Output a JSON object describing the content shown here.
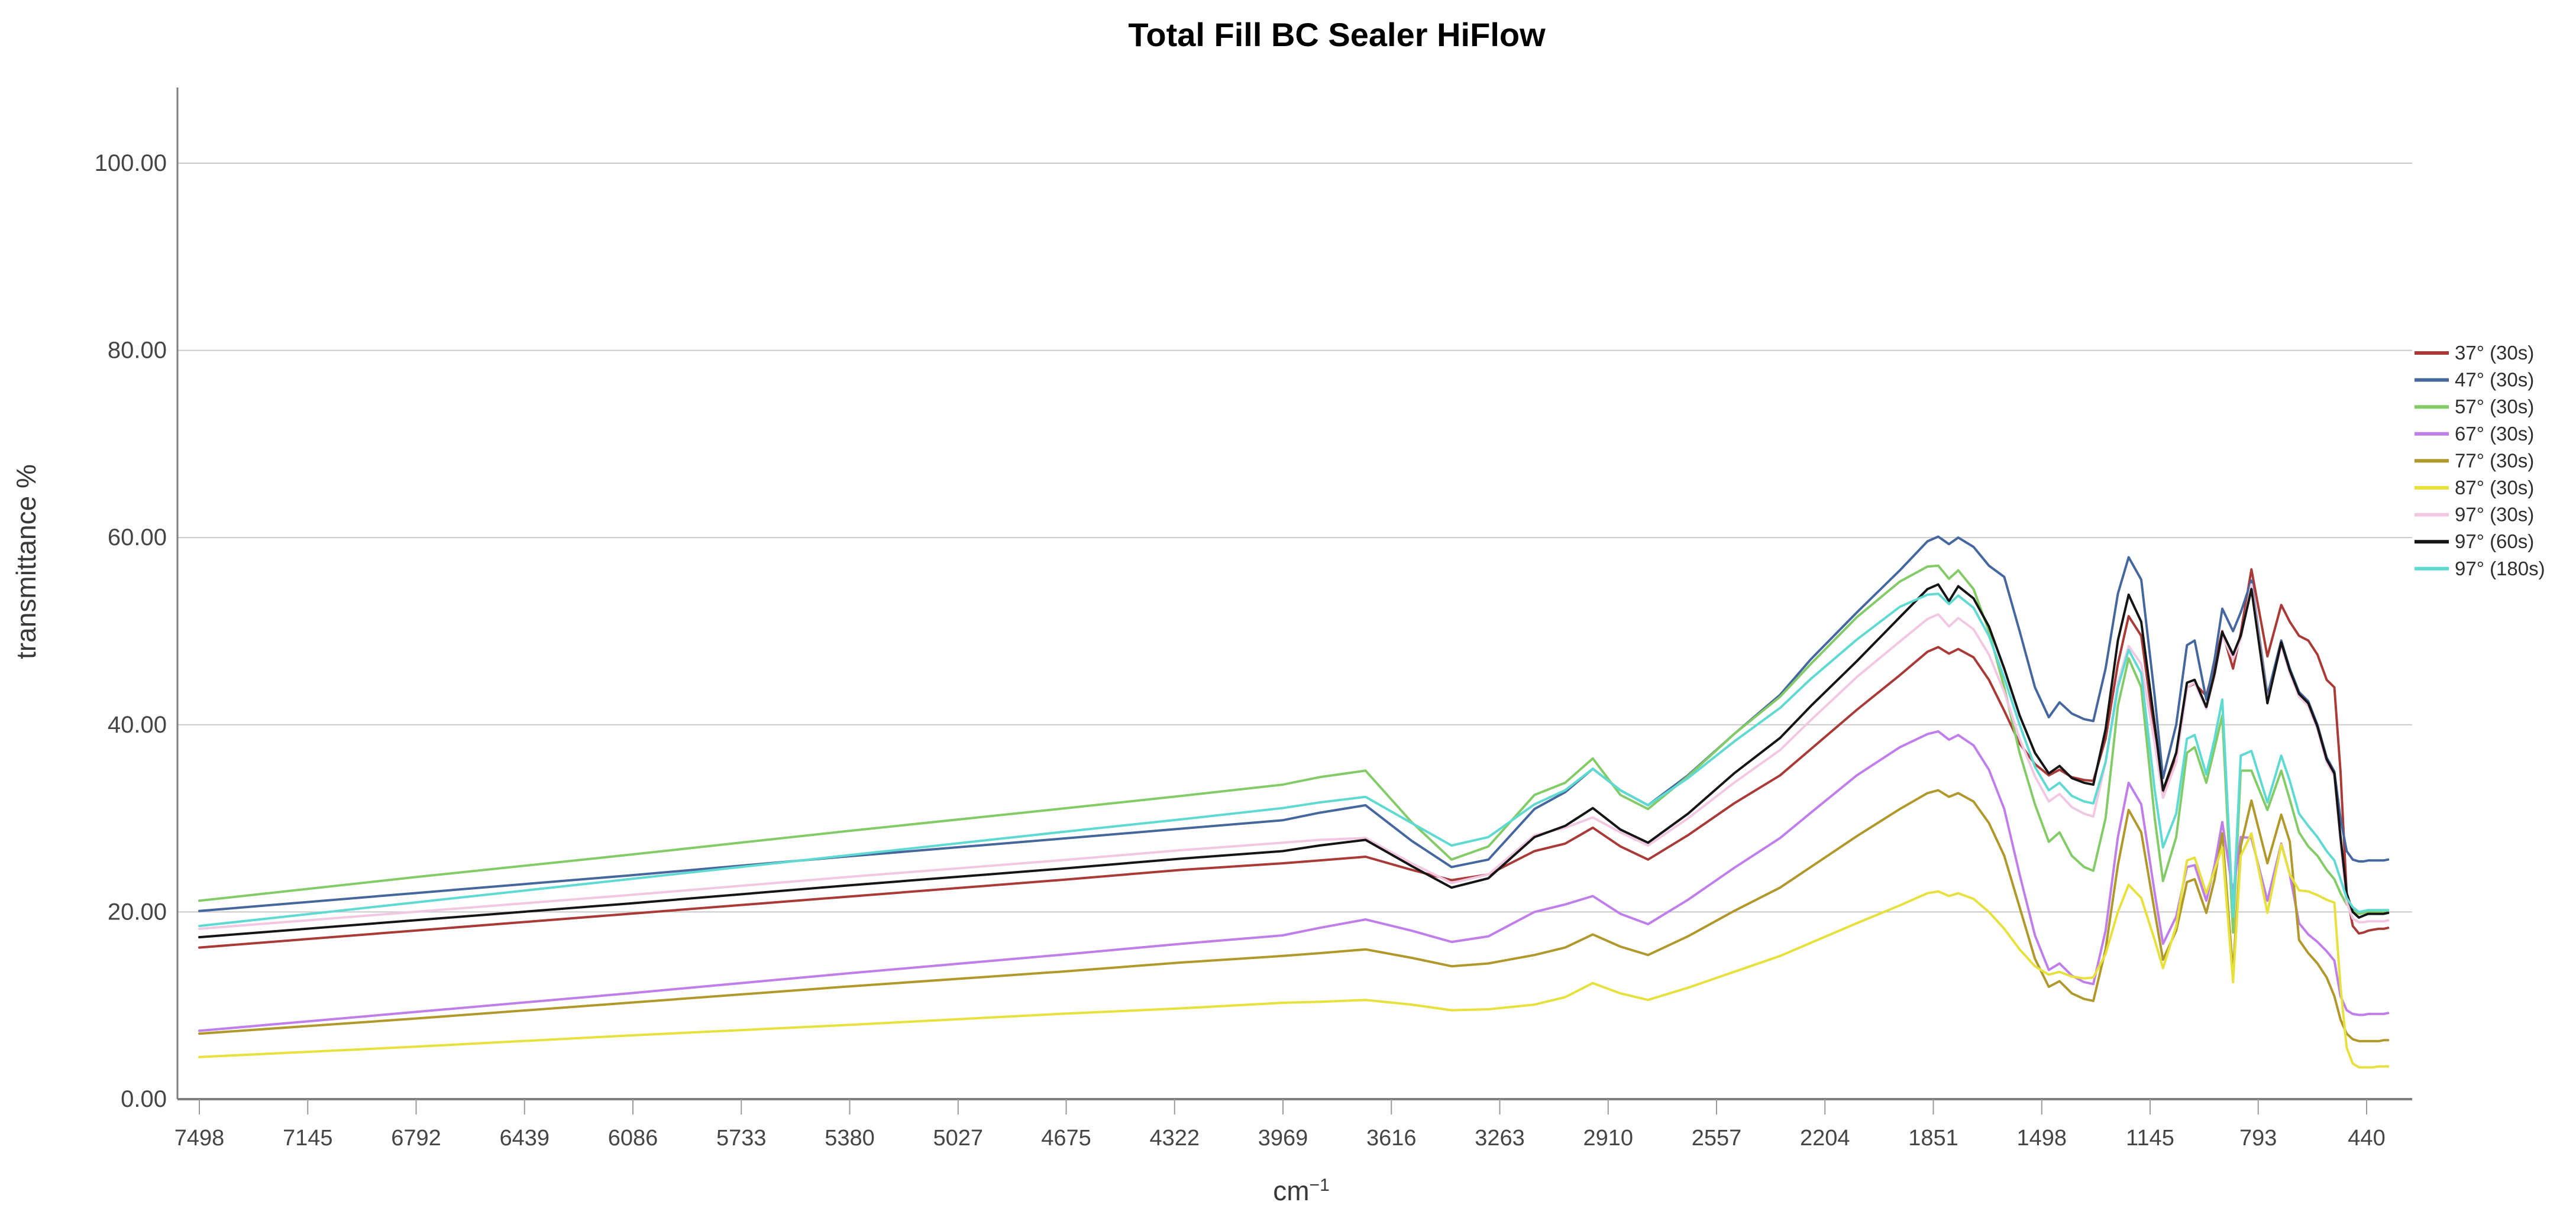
{
  "title": "Total Fill BC Sealer HiFlow",
  "y_axis": {
    "label": "transmittance %",
    "ticks": [
      {
        "v": 100,
        "label": "100.00"
      },
      {
        "v": 80,
        "label": "80.00"
      },
      {
        "v": 60,
        "label": "60.00"
      },
      {
        "v": 40,
        "label": "40.00"
      },
      {
        "v": 20,
        "label": "20.00"
      },
      {
        "v": 0,
        "label": "0.00"
      }
    ]
  },
  "x_axis": {
    "label_base": "cm",
    "label_sup": "−1",
    "ticks": [
      7498,
      7145,
      6792,
      6439,
      6086,
      5733,
      5380,
      5027,
      4675,
      4322,
      3969,
      3616,
      3263,
      2910,
      2557,
      2204,
      1851,
      1498,
      1145,
      793,
      440
    ]
  },
  "colors": {
    "grid": "#c9c9c9",
    "axis": "#7f7f7f",
    "tick": "#9a9a9a",
    "title": "#000000"
  },
  "chart_data": {
    "type": "line",
    "xlabel": "cm-1",
    "ylabel": "transmittance %",
    "x_reversed": true,
    "xlim": [
      7498,
      370
    ],
    "ylim": [
      0,
      108
    ],
    "grid": "horizontal",
    "legend_position": "right",
    "x": [
      7498,
      6800,
      6100,
      5400,
      4700,
      4300,
      3970,
      3850,
      3700,
      3550,
      3420,
      3300,
      3150,
      3050,
      2960,
      2870,
      2780,
      2650,
      2500,
      2350,
      2250,
      2100,
      1960,
      1870,
      1835,
      1800,
      1770,
      1720,
      1670,
      1620,
      1570,
      1520,
      1475,
      1440,
      1400,
      1360,
      1330,
      1290,
      1250,
      1215,
      1174,
      1130,
      1103,
      1060,
      1025,
      1000,
      962,
      935,
      910,
      875,
      850,
      815,
      763,
      718,
      690,
      660,
      630,
      600,
      570,
      545,
      525,
      505,
      485,
      465,
      450,
      435,
      420,
      400,
      385,
      370
    ],
    "series": [
      {
        "name": "37° (30s)",
        "color": "#a93a38",
        "values": [
          16.2,
          18.0,
          19.8,
          21.6,
          23.4,
          24.5,
          25.2,
          25.5,
          25.9,
          24.5,
          23.4,
          24.0,
          26.5,
          27.3,
          29.0,
          27.0,
          25.6,
          28.2,
          31.6,
          34.6,
          37.4,
          41.6,
          45.3,
          47.8,
          48.3,
          47.6,
          48.1,
          47.2,
          44.8,
          41.5,
          38.0,
          35.8,
          34.6,
          35.2,
          34.4,
          34.1,
          34.0,
          38.5,
          46.5,
          51.6,
          49.5,
          39.0,
          32.8,
          36.5,
          44.0,
          44.4,
          43.1,
          46.5,
          50.0,
          46.0,
          49.8,
          56.6,
          47.3,
          52.8,
          51.0,
          49.5,
          49.0,
          47.5,
          44.8,
          44.0,
          35.0,
          22.0,
          18.5,
          17.7,
          17.8,
          18.0,
          18.1,
          18.2,
          18.2,
          18.3
        ]
      },
      {
        "name": "47° (30s)",
        "color": "#45679e",
        "values": [
          20.1,
          22.0,
          23.9,
          25.9,
          27.8,
          28.9,
          29.8,
          30.6,
          31.4,
          27.6,
          24.8,
          25.6,
          31.0,
          32.8,
          35.3,
          33.0,
          31.4,
          34.6,
          39.0,
          43.2,
          47.0,
          52.0,
          56.5,
          59.6,
          60.1,
          59.3,
          60.0,
          59.0,
          57.0,
          55.8,
          50.0,
          44.0,
          40.8,
          42.4,
          41.2,
          40.6,
          40.4,
          46.0,
          54.0,
          57.9,
          55.5,
          43.0,
          34.3,
          40.0,
          48.5,
          49.0,
          42.7,
          47.0,
          52.4,
          50.0,
          52.0,
          55.4,
          43.1,
          49.0,
          46.0,
          43.5,
          42.5,
          40.0,
          36.5,
          35.0,
          30.0,
          26.5,
          25.6,
          25.4,
          25.4,
          25.5,
          25.5,
          25.5,
          25.5,
          25.6
        ]
      },
      {
        "name": "57° (30s)",
        "color": "#83cb67",
        "values": [
          21.2,
          23.7,
          26.1,
          28.6,
          31.0,
          32.4,
          33.6,
          34.4,
          35.1,
          29.6,
          25.6,
          27.0,
          32.5,
          33.8,
          36.4,
          32.5,
          31.0,
          34.5,
          39.0,
          43.0,
          46.5,
          51.5,
          55.3,
          56.9,
          57.0,
          55.6,
          56.5,
          54.5,
          50.0,
          44.0,
          37.0,
          31.5,
          27.5,
          28.5,
          26.0,
          24.8,
          24.4,
          30.0,
          42.0,
          47.1,
          44.0,
          30.0,
          23.3,
          28.0,
          37.0,
          37.6,
          33.8,
          37.5,
          41.0,
          17.8,
          35.1,
          35.1,
          30.9,
          35.1,
          32.0,
          28.5,
          27.0,
          26.0,
          24.5,
          23.5,
          22.0,
          20.8,
          20.2,
          19.8,
          19.9,
          20.0,
          20.0,
          20.0,
          20.0,
          20.0
        ]
      },
      {
        "name": "67° (30s)",
        "color": "#bf7eea",
        "values": [
          7.3,
          9.3,
          11.3,
          13.4,
          15.4,
          16.6,
          17.5,
          18.3,
          19.2,
          18.0,
          16.8,
          17.4,
          20.0,
          20.8,
          21.7,
          19.8,
          18.7,
          21.3,
          24.7,
          27.9,
          30.6,
          34.6,
          37.6,
          39.0,
          39.3,
          38.4,
          38.9,
          37.8,
          35.2,
          31.0,
          24.0,
          17.5,
          13.8,
          14.5,
          13.2,
          12.5,
          12.3,
          18.0,
          28.0,
          33.8,
          31.5,
          22.0,
          16.6,
          19.5,
          24.8,
          25.0,
          21.2,
          25.0,
          29.6,
          22.0,
          28.0,
          27.9,
          21.2,
          27.3,
          24.0,
          18.8,
          17.6,
          16.8,
          15.8,
          14.8,
          11.0,
          9.5,
          9.1,
          9.0,
          9.0,
          9.1,
          9.1,
          9.1,
          9.1,
          9.2
        ]
      },
      {
        "name": "77° (30s)",
        "color": "#b0982b",
        "values": [
          7.0,
          8.6,
          10.3,
          12.0,
          13.6,
          14.6,
          15.3,
          15.6,
          16.0,
          15.1,
          14.2,
          14.5,
          15.4,
          16.2,
          17.6,
          16.3,
          15.4,
          17.4,
          20.1,
          22.6,
          24.8,
          28.1,
          31.0,
          32.7,
          33.0,
          32.3,
          32.7,
          31.8,
          29.5,
          26.0,
          20.5,
          15.0,
          12.0,
          12.6,
          11.3,
          10.7,
          10.5,
          16.0,
          25.0,
          30.9,
          28.5,
          20.0,
          14.9,
          18.0,
          23.2,
          23.5,
          19.9,
          23.5,
          28.4,
          13.5,
          27.0,
          31.9,
          25.2,
          30.4,
          27.5,
          17.0,
          15.6,
          14.5,
          13.0,
          11.0,
          8.5,
          7.0,
          6.4,
          6.2,
          6.2,
          6.2,
          6.2,
          6.2,
          6.3,
          6.3
        ]
      },
      {
        "name": "87° (30s)",
        "color": "#e6e13c",
        "values": [
          4.5,
          5.6,
          6.8,
          7.9,
          9.1,
          9.7,
          10.3,
          10.4,
          10.6,
          10.1,
          9.5,
          9.6,
          10.1,
          10.9,
          12.4,
          11.3,
          10.6,
          11.9,
          13.6,
          15.3,
          16.7,
          18.8,
          20.7,
          22.0,
          22.2,
          21.7,
          22.0,
          21.4,
          20.0,
          18.2,
          16.0,
          14.2,
          13.3,
          13.6,
          13.1,
          12.9,
          13.0,
          15.5,
          20.0,
          22.9,
          21.5,
          17.0,
          14.0,
          18.5,
          25.5,
          25.8,
          22.0,
          24.5,
          26.9,
          12.5,
          26.0,
          28.4,
          19.9,
          27.2,
          24.0,
          22.3,
          22.2,
          21.8,
          21.3,
          21.0,
          12.0,
          5.5,
          3.8,
          3.4,
          3.4,
          3.4,
          3.4,
          3.5,
          3.5,
          3.5
        ]
      },
      {
        "name": "97° (30s)",
        "color": "#f2c7e1",
        "values": [
          18.2,
          20.0,
          21.8,
          23.7,
          25.5,
          26.6,
          27.4,
          27.7,
          27.9,
          25.2,
          23.1,
          24.0,
          28.2,
          29.0,
          30.1,
          28.5,
          27.1,
          30.0,
          33.8,
          37.3,
          40.5,
          45.1,
          48.9,
          51.3,
          51.8,
          50.5,
          51.4,
          50.2,
          47.5,
          43.5,
          38.5,
          34.5,
          31.8,
          32.6,
          31.2,
          30.5,
          30.2,
          36.0,
          44.5,
          48.4,
          46.5,
          38.0,
          32.2,
          36.0,
          44.0,
          44.5,
          41.7,
          45.2,
          49.5,
          47.0,
          49.2,
          55.0,
          42.5,
          48.5,
          45.5,
          43.0,
          42.0,
          39.5,
          36.0,
          34.5,
          27.5,
          21.0,
          19.3,
          18.9,
          18.9,
          19.0,
          19.0,
          19.0,
          19.0,
          19.1
        ]
      },
      {
        "name": "97° (60s)",
        "color": "#151515",
        "values": [
          17.3,
          19.1,
          20.9,
          22.8,
          24.6,
          25.7,
          26.5,
          27.1,
          27.7,
          24.9,
          22.6,
          23.6,
          28.0,
          29.2,
          31.1,
          28.8,
          27.4,
          30.5,
          34.8,
          38.6,
          42.0,
          46.8,
          51.5,
          54.5,
          55.0,
          53.2,
          54.8,
          53.5,
          50.5,
          46.0,
          41.0,
          37.0,
          34.8,
          35.6,
          34.3,
          33.8,
          33.6,
          39.5,
          49.0,
          53.9,
          51.0,
          40.0,
          33.0,
          37.0,
          44.5,
          44.8,
          41.9,
          45.5,
          49.9,
          47.5,
          49.5,
          54.5,
          42.3,
          48.8,
          45.8,
          43.3,
          42.3,
          39.8,
          36.3,
          34.8,
          28.0,
          22.0,
          20.0,
          19.4,
          19.6,
          19.8,
          19.8,
          19.8,
          19.8,
          19.9
        ]
      },
      {
        "name": "97° (180s)",
        "color": "#5edad2",
        "values": [
          18.5,
          21.0,
          23.5,
          26.0,
          28.5,
          29.9,
          31.1,
          31.7,
          32.3,
          29.5,
          27.1,
          28.0,
          31.5,
          33.0,
          35.3,
          33.0,
          31.4,
          34.3,
          38.2,
          41.8,
          44.9,
          49.1,
          52.6,
          53.9,
          54.0,
          52.9,
          53.8,
          52.5,
          49.5,
          45.0,
          40.0,
          35.5,
          33.0,
          33.8,
          32.4,
          31.8,
          31.6,
          36.0,
          44.0,
          48.0,
          45.5,
          33.0,
          26.9,
          30.5,
          38.5,
          38.9,
          34.7,
          38.5,
          42.7,
          19.5,
          36.7,
          37.2,
          31.7,
          36.7,
          34.0,
          30.5,
          29.2,
          28.0,
          26.5,
          25.5,
          23.5,
          21.5,
          20.5,
          20.0,
          20.1,
          20.2,
          20.2,
          20.2,
          20.2,
          20.2
        ]
      }
    ]
  }
}
